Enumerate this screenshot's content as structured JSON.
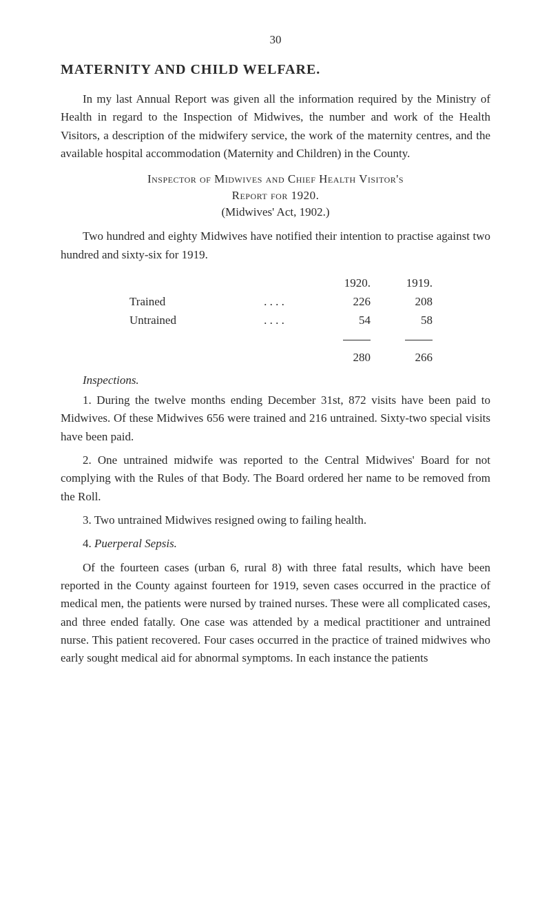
{
  "page_number": "30",
  "heading": "MATERNITY AND CHILD WELFARE.",
  "intro_para": "In my last Annual Report was given all the information required by the Ministry of Health in regard to the Inspection of Midwives, the number and work of the Health Visitors, a description of the midwifery service, the work of the maternity centres, and the available hospital accommodation (Maternity and Children) in the County.",
  "subheading_line1": "Inspector of Midwives and Chief Health Visitor's",
  "subheading_line2": "Report for 1920.",
  "subheading_line3": "(Midwives' Act, 1902.)",
  "para_two": "Two hundred and eighty Midwives have notified their intention to practise against two hundred and sixty-six for 1919.",
  "table": {
    "header_year1": "1920.",
    "header_year2": "1919.",
    "rows": [
      {
        "label": "Trained",
        "dots": ". .          . .",
        "v1": "226",
        "v2": "208"
      },
      {
        "label": "Untrained",
        "dots": ". .          . .",
        "v1": "54",
        "v2": "58"
      }
    ],
    "totals": {
      "v1": "280",
      "v2": "266"
    }
  },
  "inspections_label": "Inspections.",
  "item1": "1.   During the twelve months ending December 31st, 872 visits have been paid to Midwives. Of these Midwives 656 were trained and 216 untrained. Sixty-two special visits have been paid.",
  "item2": "2.   One untrained midwife was reported to the Central Midwives' Board for not complying with the Rules of that Body. The Board ordered her name to be removed from the Roll.",
  "item3": "3.   Two untrained Midwives resigned owing to failing health.",
  "item4_prefix": "4.   ",
  "item4_italic": "Puerperal Sepsis.",
  "final_para": "Of the fourteen cases (urban 6, rural 8) with three fatal results, which have been reported in the County against fourteen for 1919, seven cases occurred in the practice of medical men, the patients were nursed by trained nurses. These were all complicated cases, and three ended fatally. One case was attended by a medical practitioner and untrained nurse. This patient recovered. Four cases occurred in the practice of trained midwives who early sought medical aid for abnormal symptoms. In each instance the patients"
}
